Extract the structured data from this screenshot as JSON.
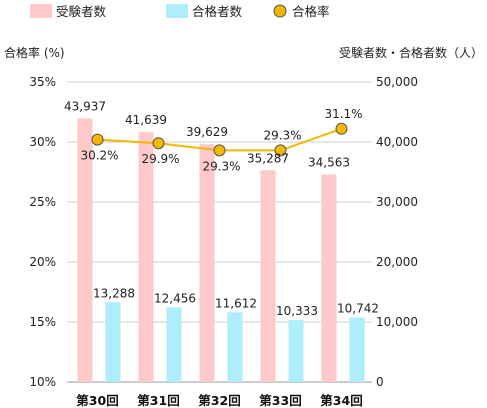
{
  "chart_data": {
    "type": "bar+line",
    "categories": [
      "第30回",
      "第31回",
      "第32回",
      "第33回",
      "第34回"
    ],
    "series": [
      {
        "name": "受験者数",
        "type": "bar",
        "axis": "right",
        "color": "#ffc9c9",
        "values": [
          43937,
          41639,
          39629,
          35287,
          34563
        ],
        "labels": [
          "43,937",
          "41,639",
          "39,629",
          "35,287",
          "34,563"
        ]
      },
      {
        "name": "合格者数",
        "type": "bar",
        "axis": "right",
        "color": "#aeeefa",
        "values": [
          13288,
          12456,
          11612,
          10333,
          10742
        ],
        "labels": [
          "13,288",
          "12,456",
          "11,612",
          "10,333",
          "10,742"
        ]
      },
      {
        "name": "合格率",
        "type": "line",
        "axis": "left",
        "color": "#f5b800",
        "values": [
          30.2,
          29.9,
          29.3,
          29.3,
          31.1
        ],
        "labels": [
          "30.2%",
          "29.9%",
          "29.3%",
          "29.3%",
          "31.1%"
        ]
      }
    ],
    "left_axis": {
      "label": "合格率 (%)",
      "range": [
        10,
        35
      ],
      "ticks": [
        10,
        15,
        20,
        25,
        30,
        35
      ],
      "tick_labels": [
        "10%",
        "15%",
        "20%",
        "25%",
        "30%",
        "35%"
      ]
    },
    "right_axis": {
      "label": "受験者数・合格者数（人）",
      "range": [
        0,
        50000
      ],
      "ticks": [
        0,
        10000,
        20000,
        30000,
        40000,
        50000
      ],
      "tick_labels": [
        "0",
        "10,000",
        "20,000",
        "30,000",
        "40,000",
        "50,000"
      ]
    },
    "grid": true,
    "legend_position": "top"
  }
}
